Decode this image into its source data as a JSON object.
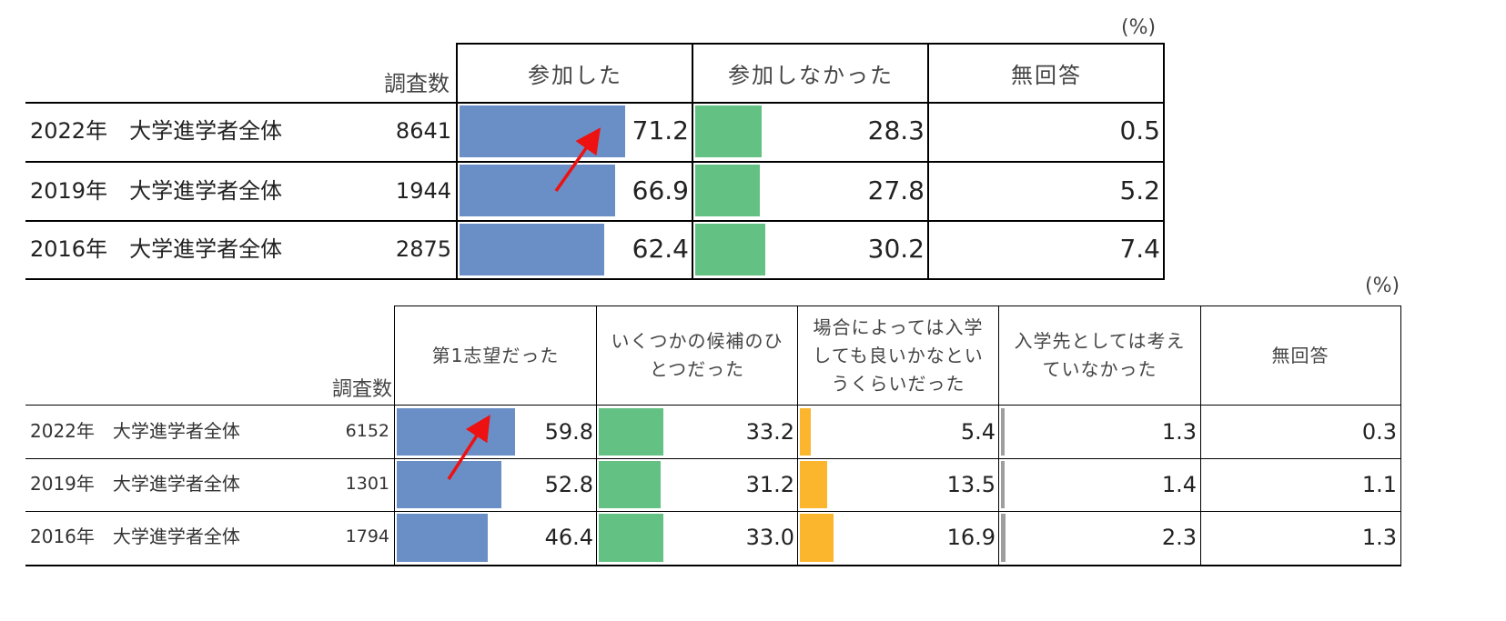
{
  "chart_data": [
    {
      "type": "table",
      "unit": "(%)",
      "count_header": "調査数",
      "columns": [
        "参加した",
        "参加しなかった",
        "無回答"
      ],
      "rows": [
        {
          "label": "2022年　大学進学者全体",
          "n": "8641",
          "values": [
            "71.2",
            "28.3",
            "0.5"
          ]
        },
        {
          "label": "2019年　大学進学者全体",
          "n": "1944",
          "values": [
            "66.9",
            "27.8",
            "5.2"
          ]
        },
        {
          "label": "2016年　大学進学者全体",
          "n": "2875",
          "values": [
            "62.4",
            "30.2",
            "7.4"
          ]
        }
      ],
      "bar_colors": [
        "#6a8fc6",
        "#63c283",
        null
      ]
    },
    {
      "type": "table",
      "unit": "(%)",
      "count_header": "調査数",
      "columns": [
        "第1志望だった",
        "いくつかの候補のひとつだった",
        "場合によっては入学しても良いかなというくらいだった",
        "入学先としては考えていなかった",
        "無回答"
      ],
      "column_lines": [
        [
          "第1志望だった"
        ],
        [
          "いくつかの候補のひ",
          "とつだった"
        ],
        [
          "場合によっては入学",
          "しても良いかなとい",
          "うくらいだった"
        ],
        [
          "入学先としては考え",
          "ていなかった"
        ],
        [
          "無回答"
        ]
      ],
      "rows": [
        {
          "label": "2022年　大学進学者全体",
          "n": "6152",
          "values": [
            "59.8",
            "33.2",
            "5.4",
            "1.3",
            "0.3"
          ]
        },
        {
          "label": "2019年　大学進学者全体",
          "n": "1301",
          "values": [
            "52.8",
            "31.2",
            "13.5",
            "1.4",
            "1.1"
          ]
        },
        {
          "label": "2016年　大学進学者全体",
          "n": "1794",
          "values": [
            "46.4",
            "33.0",
            "16.9",
            "2.3",
            "1.3"
          ]
        }
      ],
      "bar_colors": [
        "#6a8fc6",
        "#63c283",
        "#fbb62e",
        "#9e9e9e",
        null
      ]
    }
  ]
}
